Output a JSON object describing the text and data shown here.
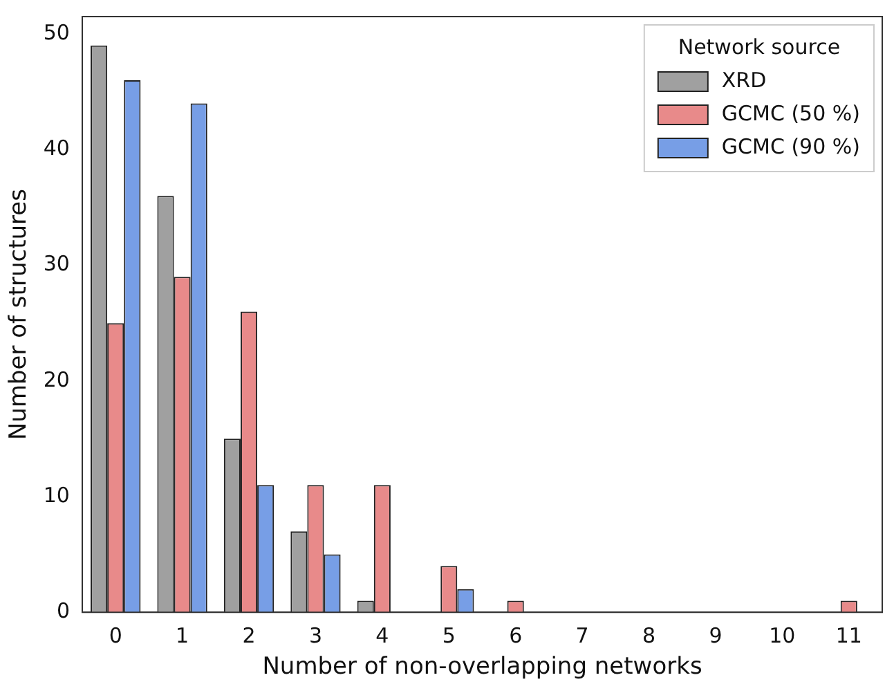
{
  "chart_data": {
    "type": "bar",
    "xlabel": "Number of non-overlapping networks",
    "ylabel": "Number of structures",
    "legend_title": "Network source",
    "legend": "top right",
    "categories": [
      "0",
      "1",
      "2",
      "3",
      "4",
      "5",
      "6",
      "7",
      "8",
      "9",
      "10",
      "11"
    ],
    "series": [
      {
        "name": "XRD",
        "color": "#a0a0a0",
        "values": [
          49,
          36,
          15,
          7,
          1,
          0,
          0,
          0,
          0,
          0,
          0,
          0
        ]
      },
      {
        "name": "GCMC (50 %)",
        "color": "#e88a8a",
        "values": [
          25,
          29,
          26,
          11,
          11,
          4,
          1,
          0,
          0,
          0,
          0,
          1
        ]
      },
      {
        "name": "GCMC (90 %)",
        "color": "#779ee6",
        "values": [
          46,
          44,
          11,
          5,
          0,
          2,
          0,
          0,
          0,
          0,
          0,
          0
        ]
      }
    ],
    "ylim": [
      0,
      51.5
    ],
    "yticks": [
      0,
      10,
      20,
      30,
      40,
      50
    ],
    "grid": false
  }
}
